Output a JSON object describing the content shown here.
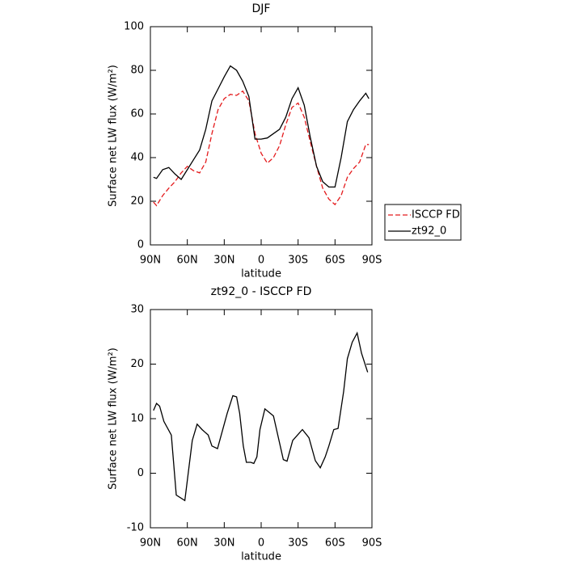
{
  "chart_data": [
    {
      "type": "line",
      "title": "DJF",
      "xlabel": "latitude",
      "ylabel": "Surface net LW flux (W/m²)",
      "x": [
        87.5,
        85,
        80,
        75,
        70,
        65,
        60,
        55,
        50,
        45,
        40,
        35,
        30,
        25,
        20,
        15,
        10,
        5,
        0,
        -5,
        -10,
        -15,
        -20,
        -25,
        -30,
        -35,
        -40,
        -45,
        -50,
        -55,
        -60,
        -65,
        -70,
        -75,
        -80,
        -85,
        -87.5
      ],
      "xlim": [
        90,
        -90
      ],
      "xticks": [
        {
          "value": 90,
          "label": "90N"
        },
        {
          "value": 60,
          "label": "60N"
        },
        {
          "value": 30,
          "label": "30N"
        },
        0,
        {
          "value": -30,
          "label": "30S"
        },
        {
          "value": -60,
          "label": "60S"
        },
        {
          "value": -90,
          "label": "90S"
        }
      ],
      "ylim": [
        0,
        100
      ],
      "yticks": [
        0,
        20,
        40,
        60,
        80,
        100
      ],
      "legend": "right",
      "series": [
        {
          "name": "ISCCP FD",
          "color": "#e41a1c",
          "dash": true,
          "values": [
            19.6,
            18,
            22.6,
            26,
            29,
            33,
            36,
            34,
            33,
            38,
            51,
            62,
            67,
            69,
            68.5,
            70.5,
            66,
            51,
            42,
            37.5,
            40,
            45.5,
            55,
            63,
            65,
            58.5,
            47,
            36,
            26,
            21,
            18.5,
            22.6,
            31,
            35,
            38,
            46,
            46
          ]
        },
        {
          "name": "zt92_0",
          "color": "#000000",
          "dash": false,
          "values": [
            31,
            30.5,
            34.5,
            35.5,
            32.5,
            30,
            34.5,
            39,
            43.5,
            53,
            66,
            71.5,
            77,
            82,
            80,
            75,
            68,
            48.5,
            48.5,
            49,
            51,
            53,
            58.5,
            67,
            72,
            64,
            49,
            36,
            29,
            26.5,
            26.5,
            40,
            56.5,
            62,
            66,
            69.5,
            67
          ]
        }
      ]
    },
    {
      "type": "line",
      "title": "zt92_0 - ISCCP FD",
      "xlabel": "latitude",
      "ylabel": "Surface net LW flux (W/m²)",
      "x": [
        87.5,
        85,
        82.5,
        79,
        73,
        69,
        62,
        59,
        56,
        52,
        48,
        43,
        40,
        35.5,
        27.6,
        23,
        20,
        17.5,
        14.5,
        12,
        8.5,
        6,
        3.5,
        1,
        -3,
        -10,
        -18,
        -21,
        -25.6,
        -29.5,
        -33.5,
        -38.8,
        -44,
        -48,
        -52,
        -55,
        -59,
        -62.5,
        -67,
        -70,
        -74,
        -78,
        -81.5,
        -86.5
      ],
      "xlim": [
        90,
        -90
      ],
      "xticks": [
        {
          "value": 90,
          "label": "90N"
        },
        {
          "value": 60,
          "label": "60N"
        },
        {
          "value": 30,
          "label": "30N"
        },
        0,
        {
          "value": -30,
          "label": "30S"
        },
        {
          "value": -60,
          "label": "60S"
        },
        {
          "value": -90,
          "label": "90S"
        }
      ],
      "ylim": [
        -10,
        30
      ],
      "yticks": [
        -10,
        0,
        10,
        20,
        30
      ],
      "series": [
        {
          "name": "zt92_0 - ISCCP FD",
          "color": "#000000",
          "dash": false,
          "values": [
            11.5,
            12.8,
            12.3,
            9.5,
            7,
            -4,
            -5,
            0.5,
            6,
            9,
            8,
            7,
            5,
            4.5,
            11,
            14.2,
            14,
            11,
            5,
            2,
            2,
            1.8,
            3,
            8,
            11.8,
            10.5,
            2.5,
            2.2,
            6,
            7,
            8,
            6.5,
            2.3,
            1,
            3,
            5,
            8,
            8.2,
            15,
            21,
            24,
            25.7,
            22,
            18.5
          ]
        }
      ]
    }
  ]
}
